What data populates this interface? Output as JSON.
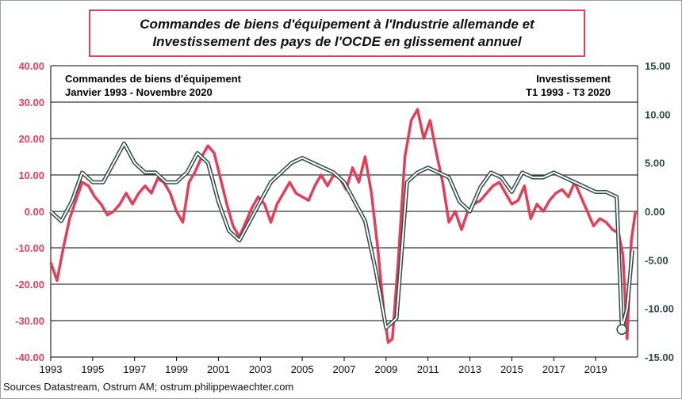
{
  "title": {
    "line1": "Commandes de biens d'équipement à l'Industrie allemande et",
    "line2": "Investissement des pays de l'OCDE en glissement annuel"
  },
  "source": "Sources Datastream, Ostrum AM; ostrum.philippewaechter.com",
  "colors": {
    "orders": "#e0405a",
    "investment": "#2e4a48",
    "grid": "#000000"
  },
  "labels": {
    "left_series_line1": "Commandes de biens d'équipement",
    "left_series_line2": "Janvier 1993 - Novembre 2020",
    "right_series_line1": "Investissement",
    "right_series_line2": "T1 1993 - T3 2020"
  },
  "chart_data": {
    "type": "line",
    "title": "Commandes de biens d'équipement à l'Industrie allemande et Investissement des pays de l'OCDE en glissement annuel",
    "x_ticks": [
      "1993",
      "1995",
      "1997",
      "1999",
      "2001",
      "2003",
      "2005",
      "2007",
      "2009",
      "2011",
      "2013",
      "2015",
      "2017",
      "2019"
    ],
    "xlim": [
      1993,
      2021
    ],
    "y_left": {
      "lim": [
        -40,
        40
      ],
      "ticks": [
        "40.00",
        "30.00",
        "20.00",
        "10.00",
        "0.00",
        "-10.00",
        "-20.00",
        "-30.00",
        "-40.00"
      ]
    },
    "y_right": {
      "lim": [
        -15,
        15
      ],
      "ticks": [
        "15.00",
        "10.00",
        "5.00",
        "0.00",
        "-5.00",
        "-10.00",
        "-15.00"
      ]
    },
    "grid": "horizontal",
    "series": [
      {
        "name": "Commandes de biens d'équipement",
        "axis": "left",
        "color": "#e0405a",
        "x": [
          1993.0,
          1993.3,
          1993.6,
          1993.9,
          1994.2,
          1994.5,
          1994.8,
          1995.1,
          1995.4,
          1995.7,
          1996.0,
          1996.3,
          1996.6,
          1996.9,
          1997.2,
          1997.5,
          1997.8,
          1998.1,
          1998.4,
          1998.7,
          1999.0,
          1999.3,
          1999.6,
          1999.9,
          2000.2,
          2000.5,
          2000.8,
          2001.1,
          2001.4,
          2001.7,
          2002.0,
          2002.3,
          2002.6,
          2002.9,
          2003.2,
          2003.5,
          2003.8,
          2004.1,
          2004.4,
          2004.7,
          2005.0,
          2005.3,
          2005.6,
          2005.9,
          2006.2,
          2006.5,
          2006.8,
          2007.1,
          2007.4,
          2007.7,
          2008.0,
          2008.3,
          2008.6,
          2008.9,
          2009.1,
          2009.3,
          2009.6,
          2009.9,
          2010.2,
          2010.5,
          2010.8,
          2011.1,
          2011.4,
          2011.7,
          2012.0,
          2012.3,
          2012.6,
          2012.9,
          2013.2,
          2013.5,
          2013.8,
          2014.1,
          2014.4,
          2014.7,
          2015.0,
          2015.3,
          2015.6,
          2015.9,
          2016.2,
          2016.5,
          2016.8,
          2017.1,
          2017.4,
          2017.7,
          2018.0,
          2018.3,
          2018.6,
          2018.9,
          2019.2,
          2019.5,
          2019.8,
          2020.1,
          2020.3,
          2020.5,
          2020.7,
          2020.9
        ],
        "values": [
          -14,
          -19,
          -10,
          -2,
          3,
          8,
          7,
          4,
          2,
          -1,
          0,
          2,
          5,
          2,
          5,
          7,
          5,
          9,
          8,
          5,
          0,
          -3,
          8,
          11,
          15,
          18,
          16,
          9,
          2,
          -4,
          -7,
          -3,
          1,
          4,
          2,
          -3,
          2,
          5,
          8,
          5,
          4,
          3,
          7,
          10,
          7,
          10,
          9,
          6,
          12,
          8,
          15,
          5,
          -10,
          -28,
          -36,
          -35,
          -12,
          15,
          25,
          28,
          20,
          25,
          16,
          8,
          -3,
          0,
          -5,
          0,
          2,
          3,
          5,
          7,
          8,
          5,
          2,
          3,
          7,
          -2,
          2,
          0,
          3,
          5,
          6,
          4,
          8,
          4,
          0,
          -4,
          -2,
          -3,
          -5,
          -6,
          -12,
          -35,
          -8,
          0
        ]
      },
      {
        "name": "Investissement",
        "axis": "right",
        "color": "#2e4a48",
        "x": [
          1993.0,
          1993.5,
          1994.0,
          1994.5,
          1995.0,
          1995.5,
          1996.0,
          1996.5,
          1997.0,
          1997.5,
          1998.0,
          1998.5,
          1999.0,
          1999.5,
          2000.0,
          2000.5,
          2001.0,
          2001.5,
          2002.0,
          2002.5,
          2003.0,
          2003.5,
          2004.0,
          2004.5,
          2005.0,
          2005.5,
          2006.0,
          2006.5,
          2007.0,
          2007.5,
          2008.0,
          2008.5,
          2009.0,
          2009.5,
          2010.0,
          2010.5,
          2011.0,
          2011.5,
          2012.0,
          2012.5,
          2013.0,
          2013.5,
          2014.0,
          2014.5,
          2015.0,
          2015.5,
          2016.0,
          2016.5,
          2017.0,
          2017.5,
          2018.0,
          2018.5,
          2019.0,
          2019.5,
          2020.0,
          2020.25,
          2020.5,
          2020.75
        ],
        "values": [
          0,
          -1,
          1,
          4,
          3,
          3,
          5,
          7,
          5,
          4,
          4,
          3,
          3,
          4,
          6,
          5,
          1,
          -2,
          -3,
          -1,
          1,
          3,
          4,
          5,
          5.5,
          5,
          4.5,
          4,
          3,
          1,
          -1,
          -6,
          -12,
          -11,
          3,
          4,
          4.5,
          4,
          3.5,
          1,
          0,
          2.5,
          4,
          3.5,
          2,
          4,
          3.5,
          3.5,
          4,
          3.5,
          3,
          2.5,
          2,
          2,
          1.5,
          -12,
          -10,
          -4
        ]
      }
    ],
    "annotation": {
      "x": 2020.25,
      "marker": "circle"
    }
  }
}
